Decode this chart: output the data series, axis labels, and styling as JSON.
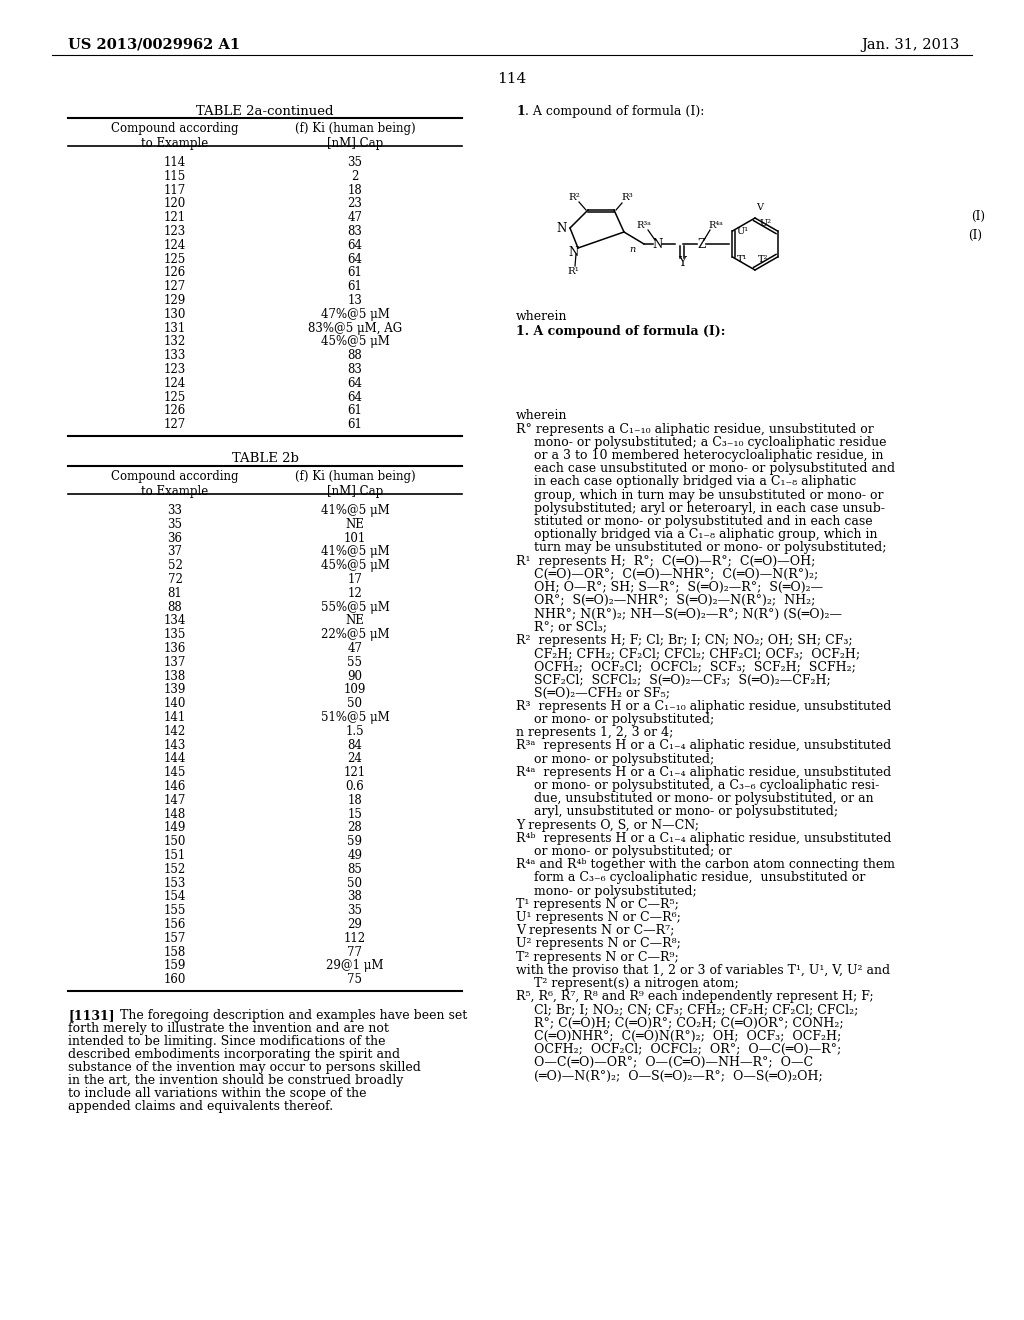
{
  "page_header_left": "US 2013/0029962 A1",
  "page_header_right": "Jan. 31, 2013",
  "page_number": "114",
  "table2a_title": "TABLE 2a-continued",
  "table2a_data": [
    [
      "114",
      "35"
    ],
    [
      "115",
      "2"
    ],
    [
      "117",
      "18"
    ],
    [
      "120",
      "23"
    ],
    [
      "121",
      "47"
    ],
    [
      "123",
      "83"
    ],
    [
      "124",
      "64"
    ],
    [
      "125",
      "64"
    ],
    [
      "126",
      "61"
    ],
    [
      "127",
      "61"
    ],
    [
      "129",
      "13"
    ],
    [
      "130",
      "47%@5 μM"
    ],
    [
      "131",
      "83%@5 μM, AG"
    ],
    [
      "132",
      "45%@5 μM"
    ],
    [
      "133",
      "88"
    ],
    [
      "123",
      "83"
    ],
    [
      "124",
      "64"
    ],
    [
      "125",
      "64"
    ],
    [
      "126",
      "61"
    ],
    [
      "127",
      "61"
    ]
  ],
  "table2b_title": "TABLE 2b",
  "table2b_data": [
    [
      "33",
      "41%@5 μM"
    ],
    [
      "35",
      "NE"
    ],
    [
      "36",
      "101"
    ],
    [
      "37",
      "41%@5 μM"
    ],
    [
      "52",
      "45%@5 μM"
    ],
    [
      "72",
      "17"
    ],
    [
      "81",
      "12"
    ],
    [
      "88",
      "55%@5 μM"
    ],
    [
      "134",
      "NE"
    ],
    [
      "135",
      "22%@5 μM"
    ],
    [
      "136",
      "47"
    ],
    [
      "137",
      "55"
    ],
    [
      "138",
      "90"
    ],
    [
      "139",
      "109"
    ],
    [
      "140",
      "50"
    ],
    [
      "141",
      "51%@5 μM"
    ],
    [
      "142",
      "1.5"
    ],
    [
      "143",
      "84"
    ],
    [
      "144",
      "24"
    ],
    [
      "145",
      "121"
    ],
    [
      "146",
      "0.6"
    ],
    [
      "147",
      "18"
    ],
    [
      "148",
      "15"
    ],
    [
      "149",
      "28"
    ],
    [
      "150",
      "59"
    ],
    [
      "151",
      "49"
    ],
    [
      "152",
      "85"
    ],
    [
      "153",
      "50"
    ],
    [
      "154",
      "38"
    ],
    [
      "155",
      "35"
    ],
    [
      "156",
      "29"
    ],
    [
      "157",
      "112"
    ],
    [
      "158",
      "77"
    ],
    [
      "159",
      "29@1 μM"
    ],
    [
      "160",
      "75"
    ]
  ],
  "paragraph_number": "[1131]",
  "paragraph_text": "The foregoing description and examples have been set forth merely to illustrate the invention and are not intended to be limiting. Since modifications of the described embodiments incorporating the spirit and substance of the invention may occur to persons skilled in the art, the invention should be construed broadly to include all variations within the scope of the appended claims and equivalents thereof.",
  "right_col_lines": [
    [
      "bold",
      "1. A compound of formula (I):"
    ],
    [
      "blank",
      ""
    ],
    [
      "blank",
      ""
    ],
    [
      "blank",
      ""
    ],
    [
      "blank",
      ""
    ],
    [
      "blank",
      ""
    ],
    [
      "blank",
      ""
    ],
    [
      "blank",
      ""
    ],
    [
      "blank",
      ""
    ],
    [
      "blank",
      ""
    ],
    [
      "normal",
      "wherein"
    ],
    [
      "indent0",
      "R° represents a C₁₋₁₀ aliphatic residue, unsubstituted or"
    ],
    [
      "indent1",
      "mono- or polysubstituted; a C₃₋₁₀ cycloaliphatic residue"
    ],
    [
      "indent1",
      "or a 3 to 10 membered heterocycloaliphatic residue, in"
    ],
    [
      "indent1",
      "each case unsubstituted or mono- or polysubstituted and"
    ],
    [
      "indent1",
      "in each case optionally bridged via a C₁₋₈ aliphatic"
    ],
    [
      "indent1",
      "group, which in turn may be unsubstituted or mono- or"
    ],
    [
      "indent1",
      "polysubstituted; aryl or heteroaryl, in each case unsub-"
    ],
    [
      "indent1",
      "stituted or mono- or polysubstituted and in each case"
    ],
    [
      "indent1",
      "optionally bridged via a C₁₋₈ aliphatic group, which in"
    ],
    [
      "indent1",
      "turn may be unsubstituted or mono- or polysubstituted;"
    ],
    [
      "indent0",
      "R¹  represents H;  R°;  C(═O)—R°;  C(═O)—OH;"
    ],
    [
      "indent1",
      "C(═O)—OR°;  C(═O)—NHR°;  C(═O)—N(R°)₂;"
    ],
    [
      "indent1",
      "OH; O—R°; SH; S—R°;  S(═O)₂—R°;  S(═O)₂—"
    ],
    [
      "indent1",
      "OR°;  S(═O)₂—NHR°;  S(═O)₂—N(R°)₂;  NH₂;"
    ],
    [
      "indent1",
      "NHR°; N(R°)₂; NH—S(═O)₂—R°; N(R°) (S(═O)₂—"
    ],
    [
      "indent1",
      "R°; or SCl₃;"
    ],
    [
      "indent0",
      "R²  represents H; F; Cl; Br; I; CN; NO₂; OH; SH; CF₃;"
    ],
    [
      "indent1",
      "CF₂H; CFH₂; CF₂Cl; CFCl₂; CHF₂Cl; OCF₃;  OCF₂H;"
    ],
    [
      "indent1",
      "OCFH₂;  OCF₂Cl;  OCFCl₂;  SCF₃;  SCF₂H;  SCFH₂;"
    ],
    [
      "indent1",
      "SCF₂Cl;  SCFCl₂;  S(═O)₂—CF₃;  S(═O)₂—CF₂H;"
    ],
    [
      "indent1",
      "S(═O)₂—CFH₂ or SF₅;"
    ],
    [
      "indent0",
      "R³  represents H or a C₁₋₁₀ aliphatic residue, unsubstituted"
    ],
    [
      "indent1",
      "or mono- or polysubstituted;"
    ],
    [
      "indent0",
      "n represents 1, 2, 3 or 4;"
    ],
    [
      "indent0",
      "R³ᵃ  represents H or a C₁₋₄ aliphatic residue, unsubstituted"
    ],
    [
      "indent1",
      "or mono- or polysubstituted;"
    ],
    [
      "indent0",
      "R⁴ᵃ  represents H or a C₁₋₄ aliphatic residue, unsubstituted"
    ],
    [
      "indent1",
      "or mono- or polysubstituted, a C₃₋₆ cycloaliphatic resi-"
    ],
    [
      "indent1",
      "due, unsubstituted or mono- or polysubstituted, or an"
    ],
    [
      "indent1",
      "aryl, unsubstituted or mono- or polysubstituted;"
    ],
    [
      "indent0",
      "Y represents O, S, or N—CN;"
    ],
    [
      "indent0",
      "R⁴ᵇ  represents H or a C₁₋₄ aliphatic residue, unsubstituted"
    ],
    [
      "indent1",
      "or mono- or polysubstituted; or"
    ],
    [
      "indent0",
      "R⁴ᵃ and R⁴ᵇ together with the carbon atom connecting them"
    ],
    [
      "indent1",
      "form a C₃₋₆ cycloaliphatic residue,  unsubstituted or"
    ],
    [
      "indent1",
      "mono- or polysubstituted;"
    ],
    [
      "indent0",
      "T¹ represents N or C—R⁵;"
    ],
    [
      "indent0",
      "U¹ represents N or C—R⁶;"
    ],
    [
      "indent0",
      "V represents N or C—R⁷;"
    ],
    [
      "indent0",
      "U² represents N or C—R⁸;"
    ],
    [
      "indent0",
      "T² represents N or C—R⁹;"
    ],
    [
      "indent0",
      "with the proviso that 1, 2 or 3 of variables T¹, U¹, V, U² and"
    ],
    [
      "indent1",
      "T² represent(s) a nitrogen atom;"
    ],
    [
      "indent0",
      "R⁵, R⁶, R⁷, R⁸ and R⁹ each independently represent H; F;"
    ],
    [
      "indent1",
      "Cl; Br; I; NO₂; CN; CF₃; CFH₂; CF₂H; CF₂Cl; CFCl₂;"
    ],
    [
      "indent1",
      "R°; C(═O)H; C(═O)R°; CO₂H; C(═O)OR°; CONH₂;"
    ],
    [
      "indent1",
      "C(═O)NHR°;  C(═O)N(R°)₂;  OH;  OCF₃;  OCF₂H;"
    ],
    [
      "indent1",
      "OCFH₂;  OCF₂Cl;  OCFCl₂;  OR°;  O—C(═O)—R°;"
    ],
    [
      "indent1",
      "O—C(═O)—OR°;  O—(C═O)—NH—R°;  O—C"
    ],
    [
      "indent1",
      "(═O)—N(R°)₂;  O—S(═O)₂—R°;  O—S(═O)₂OH;"
    ]
  ]
}
